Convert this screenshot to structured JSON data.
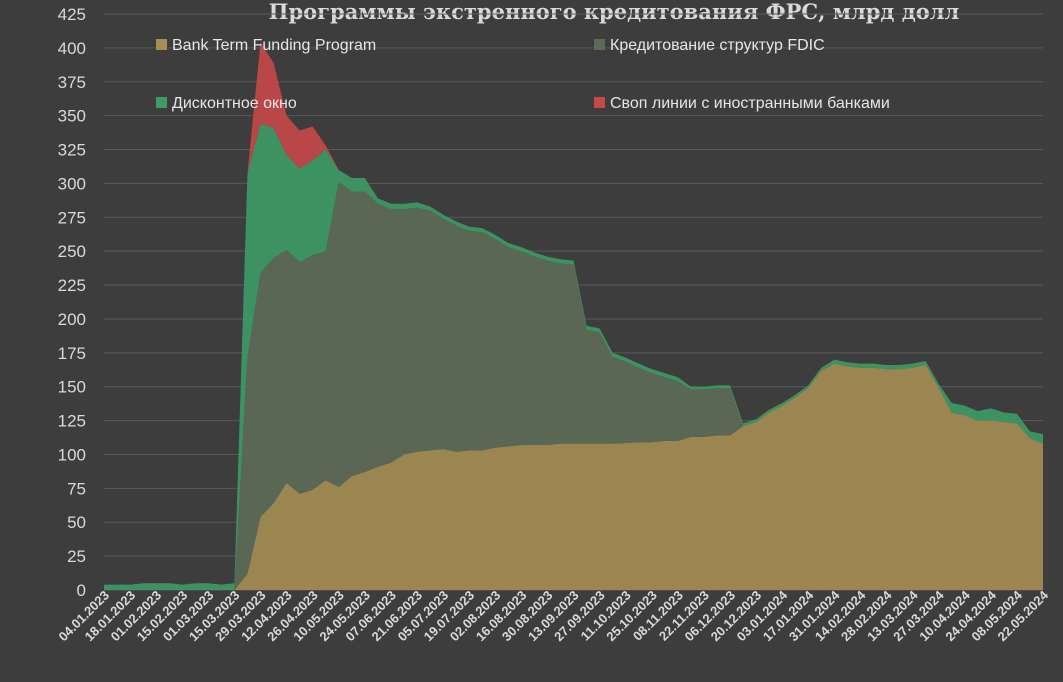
{
  "chart_data": {
    "type": "area",
    "stacked": true,
    "title": "Программы экстренного кредитования ФРС, млрд долл",
    "xlabel": "",
    "ylabel": "",
    "ylim": [
      0,
      425
    ],
    "yticks": [
      0,
      25,
      50,
      75,
      100,
      125,
      150,
      175,
      200,
      225,
      250,
      275,
      300,
      325,
      350,
      375,
      400,
      425
    ],
    "grid": "horizontal",
    "legend_position": "top",
    "x": [
      "04.01.2023",
      "11.01.2023",
      "18.01.2023",
      "25.01.2023",
      "01.02.2023",
      "08.02.2023",
      "15.02.2023",
      "22.02.2023",
      "01.03.2023",
      "08.03.2023",
      "15.03.2023",
      "22.03.2023",
      "29.03.2023",
      "05.04.2023",
      "12.04.2023",
      "19.04.2023",
      "26.04.2023",
      "03.05.2023",
      "10.05.2023",
      "17.05.2023",
      "24.05.2023",
      "31.05.2023",
      "07.06.2023",
      "14.06.2023",
      "21.06.2023",
      "28.06.2023",
      "05.07.2023",
      "12.07.2023",
      "19.07.2023",
      "26.07.2023",
      "02.08.2023",
      "09.08.2023",
      "16.08.2023",
      "23.08.2023",
      "30.08.2023",
      "06.09.2023",
      "13.09.2023",
      "20.09.2023",
      "27.09.2023",
      "04.10.2023",
      "11.10.2023",
      "18.10.2023",
      "25.10.2023",
      "01.11.2023",
      "08.11.2023",
      "15.11.2023",
      "22.11.2023",
      "29.11.2023",
      "06.12.2023",
      "13.12.2023",
      "20.12.2023",
      "27.12.2023",
      "03.01.2024",
      "10.01.2024",
      "17.01.2024",
      "24.01.2024",
      "31.01.2024",
      "07.02.2024",
      "14.02.2024",
      "21.02.2024",
      "28.02.2024",
      "06.03.2024",
      "13.03.2024",
      "20.03.2024",
      "27.03.2024",
      "03.04.2024",
      "10.04.2024",
      "17.04.2024",
      "24.04.2024",
      "01.05.2024",
      "08.05.2024",
      "15.05.2024",
      "22.05.2024"
    ],
    "series": [
      {
        "name": "Bank Term Funding Program",
        "color": "#a58d53",
        "values": [
          0,
          0,
          0,
          0,
          0,
          0,
          0,
          0,
          0,
          0,
          0,
          12,
          54,
          64,
          79,
          71,
          74,
          81,
          76,
          84,
          87,
          91,
          94,
          100,
          102,
          103,
          104,
          102,
          103,
          103,
          105,
          106,
          107,
          107,
          107,
          108,
          108,
          108,
          108,
          108,
          108.5,
          109,
          109,
          110,
          110,
          113,
          113,
          114,
          114,
          121,
          124,
          131,
          136,
          142,
          149,
          162,
          167,
          165,
          164,
          164,
          163,
          163,
          164,
          166,
          149,
          131,
          129,
          125,
          125,
          124,
          123,
          112,
          108
        ]
      },
      {
        "name": "Кредитование структур FDIC",
        "color": "#5c6b56",
        "values": [
          0,
          0,
          0,
          0,
          0,
          0,
          0,
          0,
          0,
          0,
          0,
          160,
          180,
          181,
          172,
          171,
          173,
          169,
          225,
          210,
          207,
          194,
          187,
          181,
          180,
          177,
          170,
          167,
          162,
          161,
          154,
          147,
          143,
          139,
          136,
          133,
          132,
          84,
          82,
          64,
          60,
          55,
          51,
          47,
          44,
          35,
          35,
          35,
          35,
          0,
          0,
          0,
          0,
          0,
          0,
          0,
          0,
          0,
          0,
          0,
          0,
          0,
          0,
          0,
          0,
          0,
          0,
          0,
          0,
          0,
          0,
          0,
          0
        ]
      },
      {
        "name": "Дисконтное окно",
        "color": "#3c9b64",
        "values": [
          4,
          4,
          4,
          5,
          5,
          5,
          4,
          5,
          5,
          4,
          5,
          135,
          110,
          96,
          70,
          69,
          70,
          75,
          9,
          10,
          10,
          4,
          4,
          4,
          4,
          3,
          3,
          3,
          3,
          3,
          3,
          3,
          3,
          3,
          3,
          3,
          3,
          3,
          3,
          3,
          3,
          3,
          3,
          3,
          3,
          2,
          2,
          2,
          2,
          2,
          2,
          2,
          2,
          2,
          2,
          2,
          3,
          3,
          3,
          3,
          3,
          3,
          3,
          3,
          3,
          7,
          7,
          7,
          9,
          7,
          7,
          5,
          7
        ]
      },
      {
        "name": "Своп линии с иностранными банками",
        "color": "#c74848",
        "values": [
          0,
          0,
          0,
          0,
          0,
          0,
          0,
          0,
          0,
          0,
          0,
          0,
          60,
          48,
          29,
          28,
          25,
          3,
          0,
          0,
          0,
          0,
          0,
          0,
          0,
          0,
          0,
          0,
          0,
          0,
          0,
          0,
          0,
          0,
          0,
          0,
          0,
          0,
          0,
          0,
          0,
          0,
          0,
          0,
          0,
          0,
          0,
          0,
          0,
          0,
          0,
          0,
          0,
          0,
          0,
          0,
          0,
          0,
          0,
          0,
          0,
          0,
          0,
          0,
          0,
          0,
          0,
          0,
          0,
          0,
          0,
          0,
          0
        ]
      }
    ],
    "xtick_labels": [
      "04.01.2023",
      "18.01.2023",
      "01.02.2023",
      "15.02.2023",
      "01.03.2023",
      "15.03.2023",
      "29.03.2023",
      "12.04.2023",
      "26.04.2023",
      "10.05.2023",
      "24.05.2023",
      "07.06.2023",
      "21.06.2023",
      "05.07.2023",
      "19.07.2023",
      "02.08.2023",
      "16.08.2023",
      "30.08.2023",
      "13.09.2023",
      "27.09.2023",
      "11.10.2023",
      "25.10.2023",
      "08.11.2023",
      "22.11.2023",
      "06.12.2023",
      "20.12.2023",
      "03.01.2024",
      "17.01.2024",
      "31.01.2024",
      "14.02.2024",
      "28.02.2024",
      "13.03.2024",
      "27.03.2024",
      "10.04.2024",
      "24.04.2024",
      "08.05.2024",
      "22.05.2024"
    ]
  }
}
